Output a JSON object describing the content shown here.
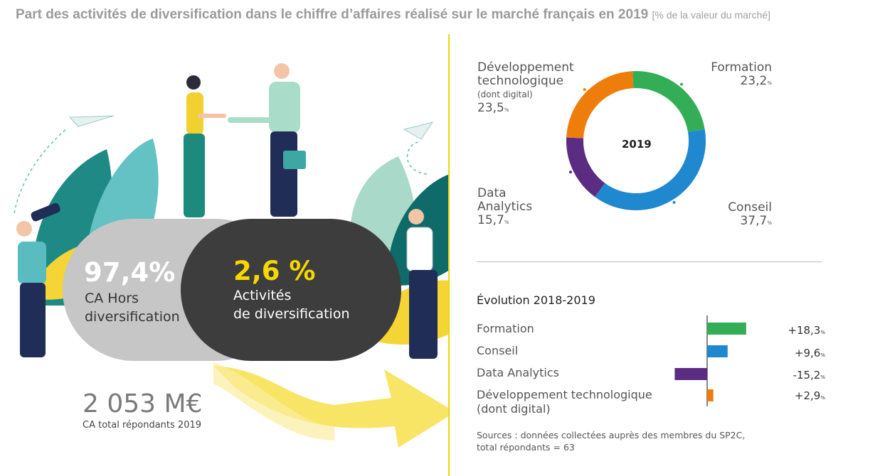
{
  "header": {
    "title": "Part des activités de diversification dans le chiffre d’affaires réalisé sur le marché français en 2019",
    "unit": "[% de la valeur du marché]"
  },
  "left": {
    "hors": {
      "value": "97,4%",
      "label_line1": "CA Hors",
      "label_line2": "diversification"
    },
    "diversif": {
      "value": "2,6 %",
      "label_line1": "Activités",
      "label_line2": "de diversification"
    },
    "total": {
      "value": "2 053 M€",
      "label": "CA total répondants 2019"
    }
  },
  "colors": {
    "formation": "#34ad57",
    "conseil": "#2088cf",
    "data_analytics": "#5b2d82",
    "dev_techno": "#ef7d0b",
    "yellow": "#f5d800",
    "dark_pill": "#3d3d3d",
    "grey_pill": "#c6c6c6"
  },
  "chart_data": [
    {
      "type": "pie",
      "title": "2019",
      "slices": [
        {
          "label": "Formation",
          "value": 23.2,
          "display": "23,2",
          "color": "#34ad57"
        },
        {
          "label": "Conseil",
          "value": 37.7,
          "display": "37,7",
          "color": "#2088cf"
        },
        {
          "label": "Data Analytics",
          "value": 15.7,
          "display": "15,7",
          "color": "#5b2d82"
        },
        {
          "label": "Développement technologique (dont digital)",
          "value": 23.5,
          "display": "23,5",
          "color": "#ef7d0b"
        }
      ],
      "labels_text": {
        "dev_line1": "Développement",
        "dev_line2": "technologique",
        "dev_line3": "(dont digital)",
        "data_line1": "Data",
        "data_line2": "Analytics",
        "pct_sign": "%"
      }
    },
    {
      "type": "bar",
      "title": "Évolution 2018-2019",
      "categories": [
        "Formation",
        "Conseil",
        "Data Analytics",
        "Développement technologique (dont digital)"
      ],
      "categories_lines": [
        [
          "Formation"
        ],
        [
          "Conseil"
        ],
        [
          "Data Analytics"
        ],
        [
          "Développement technologique",
          "(dont digital)"
        ]
      ],
      "values": [
        18.3,
        9.6,
        -15.2,
        2.9
      ],
      "display": [
        "+18,3",
        "+9,6",
        "-15,2",
        "+2,9"
      ],
      "pct_sign": "%",
      "colors": [
        "#34ad57",
        "#2088cf",
        "#5b2d82",
        "#ef7d0b"
      ]
    }
  ],
  "sources": {
    "line1": "Sources : données collectées auprès des membres du SP2C,",
    "line2": "total répondants = 63"
  }
}
